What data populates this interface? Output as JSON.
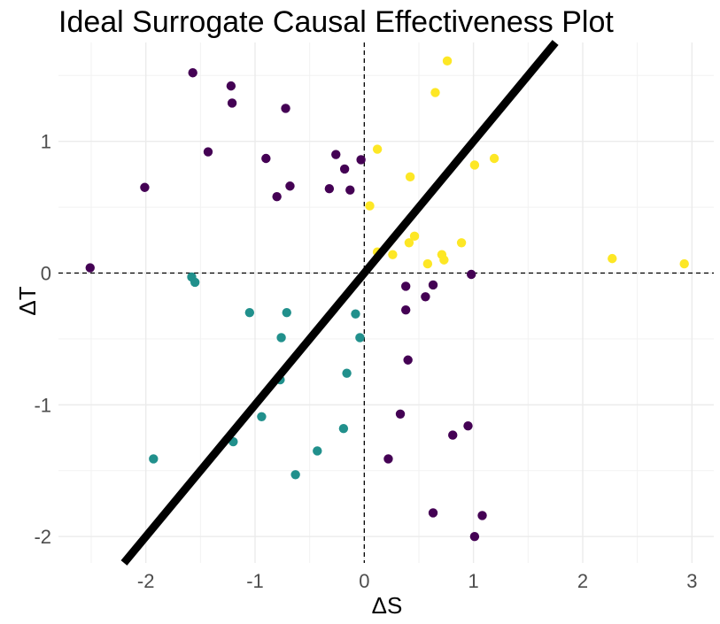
{
  "chart_data": {
    "type": "scatter",
    "title": "Ideal Surrogate Causal Effectiveness Plot",
    "xlabel": "ΔS",
    "ylabel": "ΔT",
    "xlim": [
      -2.8,
      3.2
    ],
    "ylim": [
      -2.2,
      1.75
    ],
    "x_ticks": [
      -2,
      -1,
      0,
      1,
      2,
      3
    ],
    "x_tick_labels": [
      "-2",
      "-1",
      "0",
      "1",
      "2",
      "3"
    ],
    "y_ticks": [
      -2,
      -1,
      0,
      1
    ],
    "y_tick_labels": [
      "-2",
      "-1",
      "0",
      "1"
    ],
    "grid": true,
    "reference_lines": {
      "x": 0,
      "y": 0,
      "style": "dashed"
    },
    "diagonal_line": {
      "slope": 1,
      "intercept": 0,
      "color": "#000000"
    },
    "series": [
      {
        "color": "#440154",
        "points": [
          [
            -1.57,
            1.52
          ],
          [
            -1.22,
            1.42
          ],
          [
            -1.21,
            1.29
          ],
          [
            -0.72,
            1.25
          ],
          [
            -1.43,
            0.92
          ],
          [
            -0.9,
            0.87
          ],
          [
            -2.01,
            0.65
          ],
          [
            -0.68,
            0.66
          ],
          [
            -0.8,
            0.58
          ],
          [
            -0.26,
            0.9
          ],
          [
            -0.18,
            0.79
          ],
          [
            -0.03,
            0.86
          ],
          [
            -0.32,
            0.64
          ],
          [
            -0.13,
            0.63
          ],
          [
            -2.51,
            0.04
          ],
          [
            0.98,
            -0.01
          ],
          [
            0.38,
            -0.1
          ],
          [
            0.63,
            -0.09
          ],
          [
            0.56,
            -0.18
          ],
          [
            0.38,
            -0.28
          ],
          [
            0.4,
            -0.66
          ],
          [
            0.33,
            -1.07
          ],
          [
            0.95,
            -1.16
          ],
          [
            0.81,
            -1.23
          ],
          [
            0.22,
            -1.41
          ],
          [
            0.63,
            -1.82
          ],
          [
            1.08,
            -1.84
          ],
          [
            1.01,
            -2.0
          ]
        ]
      },
      {
        "color": "#21908C",
        "points": [
          [
            -1.58,
            -0.03
          ],
          [
            -1.55,
            -0.07
          ],
          [
            -1.05,
            -0.3
          ],
          [
            -0.71,
            -0.3
          ],
          [
            -0.76,
            -0.49
          ],
          [
            -0.08,
            -0.31
          ],
          [
            -0.04,
            -0.49
          ],
          [
            -0.16,
            -0.76
          ],
          [
            -0.77,
            -0.81
          ],
          [
            -0.94,
            -1.09
          ],
          [
            -0.19,
            -1.18
          ],
          [
            -1.2,
            -1.28
          ],
          [
            -0.43,
            -1.35
          ],
          [
            -1.93,
            -1.41
          ],
          [
            -0.63,
            -1.53
          ]
        ]
      },
      {
        "color": "#FDE725",
        "points": [
          [
            0.76,
            1.61
          ],
          [
            0.65,
            1.37
          ],
          [
            0.12,
            0.94
          ],
          [
            1.01,
            0.82
          ],
          [
            1.19,
            0.87
          ],
          [
            0.42,
            0.73
          ],
          [
            0.05,
            0.51
          ],
          [
            0.46,
            0.28
          ],
          [
            0.41,
            0.23
          ],
          [
            0.89,
            0.23
          ],
          [
            0.12,
            0.16
          ],
          [
            0.26,
            0.14
          ],
          [
            0.71,
            0.14
          ],
          [
            0.73,
            0.1
          ],
          [
            0.58,
            0.07
          ],
          [
            2.27,
            0.11
          ],
          [
            2.93,
            0.07
          ]
        ]
      }
    ]
  }
}
